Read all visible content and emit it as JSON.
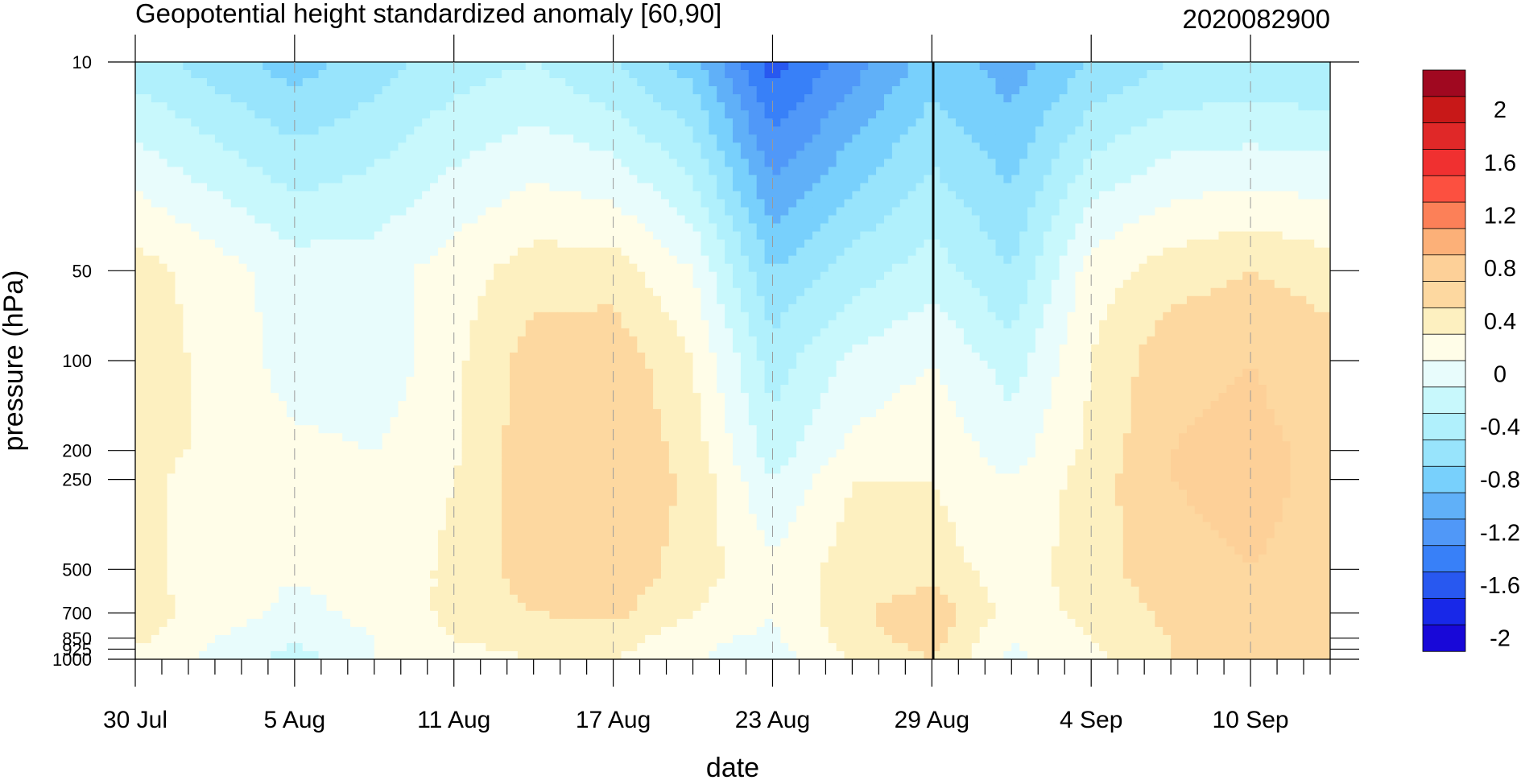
{
  "chart_data": {
    "type": "heatmap",
    "title": "Geopotential height standardized anomaly [60,90]",
    "right_title": "2020082900",
    "xlabel": "date",
    "ylabel": "pressure (hPa)",
    "x_tick_labels": [
      "30 Jul",
      "5 Aug",
      "11 Aug",
      "17 Aug",
      "23 Aug",
      "29 Aug",
      "4 Sep",
      "10 Sep"
    ],
    "x_days": [
      0,
      6,
      12,
      18,
      24,
      30,
      36,
      42
    ],
    "x_range_days": [
      0,
      45
    ],
    "y_scale": "log",
    "y_reversed": true,
    "y_range": [
      10,
      1000
    ],
    "y_tick_values": [
      10,
      50,
      100,
      200,
      250,
      500,
      700,
      850,
      925,
      1000
    ],
    "y_tick_labels": [
      "10",
      "50",
      "100",
      "200",
      "250",
      "500",
      "700",
      "850",
      "925",
      "1000"
    ],
    "current_date_marker": "29 Aug",
    "colorbar": {
      "labels": [
        "2",
        "1.6",
        "1.2",
        "0.8",
        "0.4",
        "0",
        "-0.4",
        "-0.8",
        "-1.2",
        "-1.6",
        "-2"
      ],
      "levels": [
        -2.2,
        -2.0,
        -1.8,
        -1.6,
        -1.4,
        -1.2,
        -1.0,
        -0.8,
        -0.6,
        -0.4,
        -0.2,
        0,
        0.2,
        0.4,
        0.6,
        0.8,
        1.0,
        1.2,
        1.4,
        1.6,
        1.8,
        2.0,
        2.2
      ],
      "colors": [
        "#1808d8",
        "#1828e8",
        "#2858f0",
        "#3880f8",
        "#5098f8",
        "#60b0f8",
        "#78d0fc",
        "#98e4fc",
        "#b0f0fc",
        "#c8f8fc",
        "#e8fcfc",
        "#fffde8",
        "#fdf0c0",
        "#fdd8a0",
        "#fdd098",
        "#fcb078",
        "#fc8058",
        "#fc5040",
        "#f03030",
        "#e02828",
        "#c81818",
        "#a00820"
      ]
    },
    "pressure_levels": [
      10,
      50,
      100,
      200,
      250,
      500,
      700,
      850,
      1000
    ],
    "day_columns": [
      0,
      3,
      6,
      9,
      12,
      15,
      18,
      21,
      24,
      27,
      30,
      33,
      36,
      39,
      42,
      45
    ],
    "anomaly_grid": [
      [
        -0.5,
        -0.7,
        -0.9,
        -0.7,
        -0.5,
        -0.4,
        -0.6,
        -0.9,
        -1.7,
        -1.3,
        -0.9,
        -1.1,
        -0.8,
        -0.6,
        -0.6,
        -0.6
      ],
      [
        0.3,
        0.1,
        -0.1,
        -0.1,
        0.1,
        0.3,
        0.3,
        0.0,
        -0.8,
        -0.5,
        -0.3,
        -0.6,
        0.1,
        0.3,
        0.4,
        0.3
      ],
      [
        0.3,
        0.15,
        -0.1,
        -0.15,
        0.15,
        0.5,
        0.55,
        0.2,
        -0.5,
        -0.15,
        0.0,
        -0.3,
        0.2,
        0.55,
        0.6,
        0.5
      ],
      [
        0.3,
        0.15,
        0.05,
        0.0,
        0.15,
        0.55,
        0.6,
        0.3,
        -0.3,
        0.05,
        0.15,
        -0.1,
        0.25,
        0.6,
        0.65,
        0.55
      ],
      [
        0.3,
        0.05,
        0.05,
        0.0,
        0.2,
        0.55,
        0.6,
        0.35,
        -0.2,
        0.2,
        0.2,
        0.0,
        0.3,
        0.6,
        0.65,
        0.55
      ],
      [
        0.3,
        0.05,
        0.02,
        0.05,
        0.25,
        0.5,
        0.55,
        0.3,
        0.05,
        0.3,
        0.3,
        0.1,
        0.3,
        0.55,
        0.6,
        0.55
      ],
      [
        0.3,
        0.1,
        -0.05,
        0.05,
        0.25,
        0.4,
        0.45,
        0.2,
        0.02,
        0.35,
        0.55,
        0.1,
        0.25,
        0.45,
        0.55,
        0.5
      ],
      [
        0.25,
        0.0,
        -0.15,
        0.0,
        0.2,
        0.3,
        0.3,
        0.05,
        -0.05,
        0.3,
        0.5,
        0.0,
        0.2,
        0.4,
        0.55,
        0.5
      ],
      [
        0.15,
        -0.05,
        -0.3,
        0.0,
        0.1,
        0.2,
        0.2,
        0.02,
        -0.1,
        0.2,
        0.4,
        -0.05,
        0.15,
        0.4,
        0.5,
        0.45
      ]
    ]
  }
}
